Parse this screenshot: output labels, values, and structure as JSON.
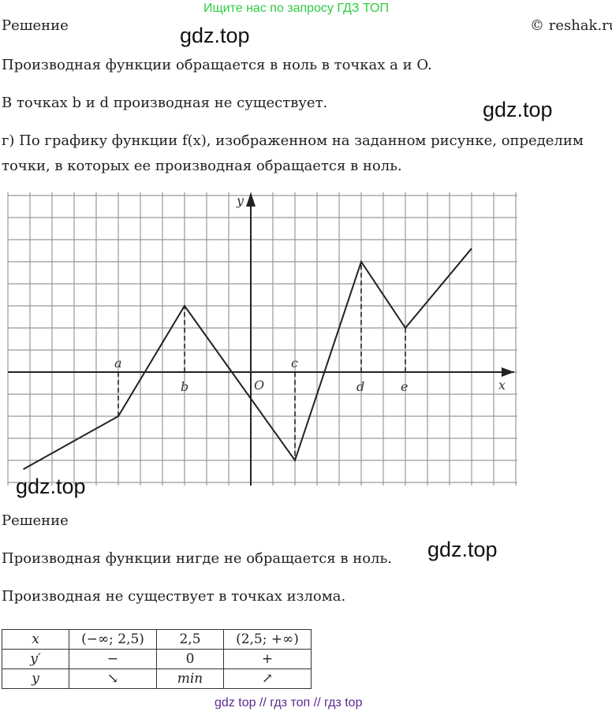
{
  "banner": "Ищите нас по запросу ГДЗ ТОП",
  "copyright": "© reshak.ru",
  "watermark": "gdz.top",
  "heading1": "Решение",
  "p1": "Производная функции обращается в ноль в точках a и O.",
  "p2": "В точках  b и d производная не существует.",
  "p3a": "г) По графику функции f(x), изображенном на заданном рисунке, определим",
  "p3b": "точки, в которых ее производная обращается в ноль.",
  "graph": {
    "x_label": "x",
    "y_label": "y",
    "origin": "O",
    "points": {
      "a": "a",
      "b": "b",
      "c": "c",
      "d": "d",
      "e": "e"
    },
    "polyline": [
      [
        -10.3,
        -4.4
      ],
      [
        -6,
        -2
      ],
      [
        -3,
        3
      ],
      [
        2,
        -4
      ],
      [
        5,
        5
      ],
      [
        7,
        2
      ],
      [
        10,
        5.6
      ]
    ]
  },
  "heading2": "Решение",
  "p4": "Производная функции нигде не обращается в ноль.",
  "p5": "Производная не существует в точках излома.",
  "table": {
    "rows": [
      [
        "x",
        "(−∞; 2,5)",
        "2,5",
        "(2,5; +∞)"
      ],
      [
        "y′",
        "−",
        "0",
        "+"
      ],
      [
        "y",
        "↘",
        "min",
        "↗"
      ]
    ]
  },
  "footer": "gdz top  //  гдз топ  //  гдз top"
}
